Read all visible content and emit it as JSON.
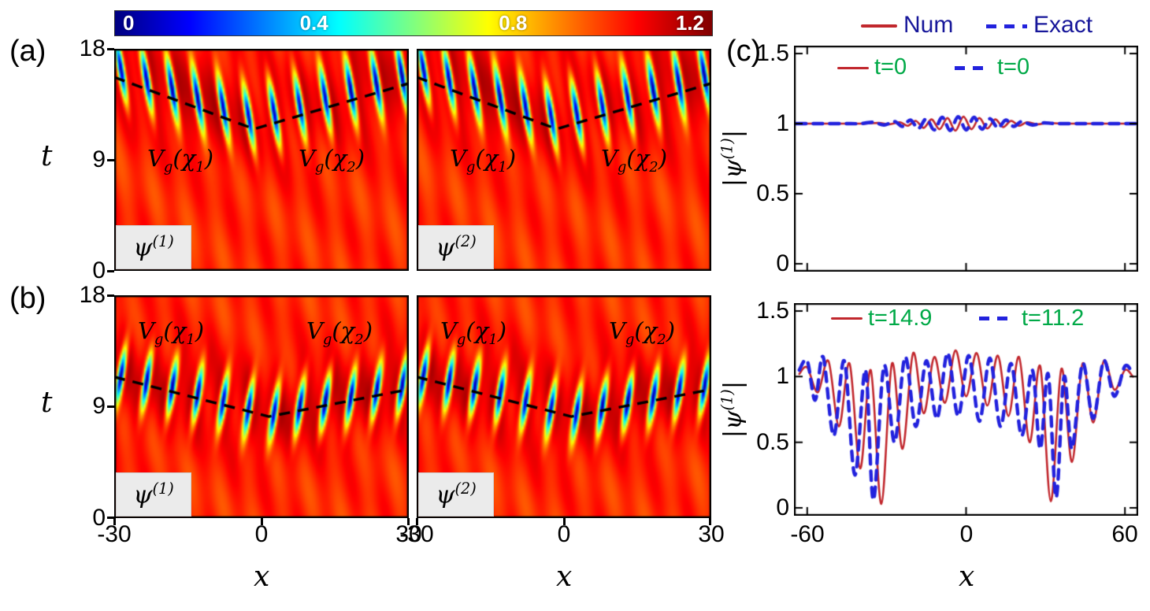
{
  "panel_letters": {
    "a": "(a)",
    "b": "(b)",
    "c": "(c)"
  },
  "colorbar": {
    "ticks": [
      "0",
      "0.4",
      "0.8",
      "1.2"
    ]
  },
  "axes": {
    "t_label": "t",
    "x_label": "x",
    "t_ticks": [
      "18",
      "9",
      "0"
    ],
    "x_ticks": [
      "-30",
      "0",
      "30"
    ],
    "c_x_ticks": [
      "-60",
      "0",
      "60"
    ],
    "c_y_ticks": [
      "1.5",
      "1",
      "0.5",
      "0"
    ]
  },
  "labels_html": {
    "vg1": "V<sub>g</sub>(χ<sub>1</sub>)",
    "vg2": "V<sub>g</sub>(χ<sub>2</sub>)",
    "psi1": "ψ<sup>(1)</sup>",
    "psi2": "ψ<sup>(2)</sup>",
    "c_ylabel": "|ψ<sup>(1)</sup>|"
  },
  "legend": {
    "num": "Num",
    "exact": "Exact"
  },
  "c_top_legend": {
    "red": "t=0",
    "blue": "t=0"
  },
  "c_bottom_legend": {
    "red": "t=14.9",
    "blue": "t=11.2"
  },
  "colors": {
    "red": "#c1272d",
    "blue": "#2222dd",
    "green": "#00a947",
    "legend_text": "#17179a",
    "jet": [
      "#000080",
      "#0000ff",
      "#00ffff",
      "#ffff00",
      "#ff0000",
      "#800000"
    ]
  },
  "chart_data": [
    {
      "id": "a1",
      "type": "heatmap",
      "field": "ψ(1)",
      "x_range": [
        -30,
        30
      ],
      "t_range": [
        0,
        18
      ],
      "clim": [
        0,
        1.2
      ],
      "colormap": "jet",
      "base_level": 1.0,
      "ripple": [
        0.035,
        0.02
      ],
      "x_start": -28.6,
      "x_spacing": 5.2,
      "sigma_t": 2.6,
      "tilt": -0.4,
      "t_offset": 0.8,
      "dashed_line": [
        [
          -30,
          15.7
        ],
        [
          -1.5,
          11.5
        ],
        [
          30,
          15.2
        ]
      ],
      "annotations": [
        "V_g(χ_1)",
        "V_g(χ_2)"
      ]
    },
    {
      "id": "a2",
      "type": "heatmap",
      "field": "ψ(2)",
      "x_range": [
        -30,
        30
      ],
      "t_range": [
        0,
        18
      ],
      "clim": [
        0,
        1.2
      ],
      "colormap": "jet",
      "base_level": 1.0,
      "ripple": [
        0.035,
        0.02
      ],
      "x_start": -28.6,
      "x_spacing": 5.2,
      "sigma_t": 2.6,
      "tilt": -0.4,
      "t_offset": 0.8,
      "dashed_line": [
        [
          -30,
          15.7
        ],
        [
          -1.5,
          11.5
        ],
        [
          30,
          15.2
        ]
      ],
      "annotations": [
        "V_g(χ_1)",
        "V_g(χ_2)"
      ]
    },
    {
      "id": "b1",
      "type": "heatmap",
      "field": "ψ(1)",
      "x_range": [
        -30,
        30
      ],
      "t_range": [
        0,
        18
      ],
      "clim": [
        0,
        1.2
      ],
      "colormap": "jet",
      "base_level": 1.0,
      "ripple": [
        0.035,
        0.02
      ],
      "x_start": -28.6,
      "x_spacing": 5.2,
      "sigma_t": 2.2,
      "tilt": 0.38,
      "t_offset": 0.3,
      "dashed_line": [
        [
          -30,
          11.4
        ],
        [
          1.5,
          8.2
        ],
        [
          30,
          10.4
        ]
      ],
      "annotations": [
        "V_g(χ_1)",
        "V_g(χ_2)"
      ]
    },
    {
      "id": "b2",
      "type": "heatmap",
      "field": "ψ(2)",
      "x_range": [
        -30,
        30
      ],
      "t_range": [
        0,
        18
      ],
      "clim": [
        0,
        1.2
      ],
      "colormap": "jet",
      "base_level": 1.0,
      "ripple": [
        0.035,
        0.02
      ],
      "x_start": -28.6,
      "x_spacing": 5.2,
      "sigma_t": 2.2,
      "tilt": 0.38,
      "t_offset": 0.3,
      "dashed_line": [
        [
          -30,
          11.4
        ],
        [
          1.5,
          8.2
        ],
        [
          30,
          10.4
        ]
      ],
      "annotations": [
        "V_g(χ_1)",
        "V_g(χ_2)"
      ]
    },
    {
      "id": "c_top",
      "type": "line",
      "xlabel": "x",
      "ylabel": "|ψ^(1)|",
      "xlim": [
        -65,
        65
      ],
      "ylim": [
        0,
        1.5
      ],
      "xticks": [
        -60,
        0,
        60
      ],
      "yticks": [
        0,
        0.5,
        1,
        1.5
      ],
      "grid": false,
      "series": [
        {
          "name": "Num t=0",
          "color": "#c1272d",
          "width": 2.6,
          "dash": null,
          "points": [
            [
              -64,
              1.0
            ],
            [
              -55,
              1.0
            ],
            [
              -45,
              1.0
            ],
            [
              -38,
              1.0
            ],
            [
              -33,
              1.005
            ],
            [
              -29,
              0.995
            ],
            [
              -25,
              1.01
            ],
            [
              -22,
              0.985
            ],
            [
              -19,
              1.02
            ],
            [
              -16,
              0.97
            ],
            [
              -13,
              1.03
            ],
            [
              -10,
              0.96
            ],
            [
              -7,
              1.04
            ],
            [
              -4,
              0.95
            ],
            [
              -1,
              1.05
            ],
            [
              2,
              0.96
            ],
            [
              5,
              1.04
            ],
            [
              8,
              0.965
            ],
            [
              11,
              1.03
            ],
            [
              14,
              0.975
            ],
            [
              17,
              1.02
            ],
            [
              20,
              0.985
            ],
            [
              23,
              1.01
            ],
            [
              27,
              0.995
            ],
            [
              31,
              1.005
            ],
            [
              36,
              1.0
            ],
            [
              45,
              1.0
            ],
            [
              55,
              1.0
            ],
            [
              64,
              1.0
            ]
          ]
        },
        {
          "name": "Exact t=0",
          "color": "#2222dd",
          "width": 4.4,
          "dash": [
            12,
            9
          ],
          "points": [
            [
              -64,
              1.0
            ],
            [
              -55,
              1.0
            ],
            [
              -46,
              1.0
            ],
            [
              -40,
              1.0
            ],
            [
              -35,
              1.01
            ],
            [
              -31,
              0.99
            ],
            [
              -27,
              1.015
            ],
            [
              -24,
              0.98
            ],
            [
              -21,
              1.025
            ],
            [
              -18,
              0.965
            ],
            [
              -15,
              1.035
            ],
            [
              -12,
              0.955
            ],
            [
              -9,
              1.045
            ],
            [
              -6,
              0.95
            ],
            [
              -3,
              1.05
            ],
            [
              0,
              0.955
            ],
            [
              3,
              1.045
            ],
            [
              6,
              0.96
            ],
            [
              9,
              1.035
            ],
            [
              12,
              0.97
            ],
            [
              15,
              1.025
            ],
            [
              18,
              0.98
            ],
            [
              21,
              1.015
            ],
            [
              25,
              0.99
            ],
            [
              29,
              1.005
            ],
            [
              34,
              1.0
            ],
            [
              44,
              1.0
            ],
            [
              55,
              1.0
            ],
            [
              64,
              1.0
            ]
          ]
        }
      ]
    },
    {
      "id": "c_bottom",
      "type": "line",
      "xlabel": "x",
      "ylabel": "|ψ^(1)|",
      "xlim": [
        -65,
        65
      ],
      "ylim": [
        0,
        1.5
      ],
      "xticks": [
        -60,
        0,
        60
      ],
      "yticks": [
        0,
        0.5,
        1,
        1.5
      ],
      "grid": false,
      "series": [
        {
          "name": "Num t=14.9",
          "color": "#c1272d",
          "width": 2.6,
          "dash": null,
          "points": [
            [
              -63,
              1.02
            ],
            [
              -60,
              1.07
            ],
            [
              -56,
              0.88
            ],
            [
              -52,
              1.12
            ],
            [
              -48,
              0.62
            ],
            [
              -44,
              1.1
            ],
            [
              -40,
              0.3
            ],
            [
              -36,
              1.05
            ],
            [
              -32,
              0.03
            ],
            [
              -28,
              1.1
            ],
            [
              -24,
              0.45
            ],
            [
              -20,
              1.18
            ],
            [
              -16,
              0.72
            ],
            [
              -12,
              1.15
            ],
            [
              -8,
              0.8
            ],
            [
              -4,
              1.2
            ],
            [
              0,
              0.85
            ],
            [
              4,
              1.18
            ],
            [
              8,
              0.78
            ],
            [
              12,
              1.16
            ],
            [
              16,
              0.7
            ],
            [
              20,
              1.15
            ],
            [
              24,
              0.5
            ],
            [
              28,
              1.08
            ],
            [
              32,
              0.05
            ],
            [
              36,
              1.06
            ],
            [
              40,
              0.35
            ],
            [
              44,
              1.1
            ],
            [
              48,
              0.65
            ],
            [
              52,
              1.12
            ],
            [
              56,
              0.9
            ],
            [
              60,
              1.05
            ],
            [
              63,
              1.0
            ]
          ]
        },
        {
          "name": "Exact t=11.2",
          "color": "#2222dd",
          "width": 4.4,
          "dash": [
            12,
            9
          ],
          "points": [
            [
              -63,
              1.05
            ],
            [
              -60,
              1.12
            ],
            [
              -57,
              0.82
            ],
            [
              -54,
              1.15
            ],
            [
              -50,
              0.55
            ],
            [
              -46,
              1.12
            ],
            [
              -42,
              0.25
            ],
            [
              -38,
              1.05
            ],
            [
              -35,
              0.06
            ],
            [
              -31,
              1.08
            ],
            [
              -27,
              0.5
            ],
            [
              -23,
              1.15
            ],
            [
              -19,
              0.62
            ],
            [
              -15,
              1.12
            ],
            [
              -11,
              0.68
            ],
            [
              -7,
              1.18
            ],
            [
              -3,
              0.7
            ],
            [
              1,
              1.16
            ],
            [
              5,
              0.66
            ],
            [
              9,
              1.14
            ],
            [
              13,
              0.62
            ],
            [
              17,
              1.1
            ],
            [
              21,
              0.55
            ],
            [
              25,
              1.05
            ],
            [
              28,
              0.45
            ],
            [
              31,
              1.02
            ],
            [
              34,
              0.08
            ],
            [
              37,
              1.0
            ],
            [
              40,
              0.45
            ],
            [
              44,
              1.1
            ],
            [
              48,
              0.68
            ],
            [
              52,
              1.12
            ],
            [
              56,
              0.85
            ],
            [
              60,
              1.08
            ],
            [
              63,
              1.02
            ]
          ]
        }
      ]
    }
  ]
}
